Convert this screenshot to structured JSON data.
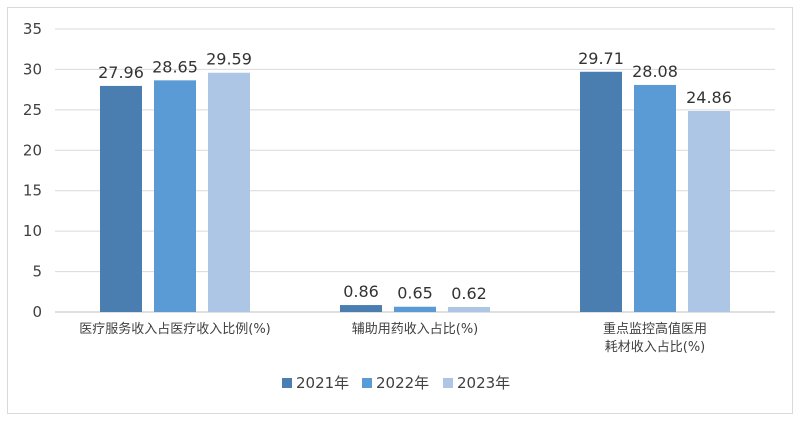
{
  "chart_data": {
    "type": "bar",
    "categories": [
      [
        "医疗服务收入占医疗收入比例(%)"
      ],
      [
        "辅助用药收入占比(%)"
      ],
      [
        "重点监控高值医用",
        "耗材收入占比(%)"
      ]
    ],
    "series": [
      {
        "name": "2021年",
        "color": "#4a7eb0",
        "values": [
          27.96,
          0.86,
          29.71
        ],
        "labels": [
          "27.96",
          "0.86",
          "29.71"
        ]
      },
      {
        "name": "2022年",
        "color": "#5b9bd5",
        "values": [
          28.65,
          0.65,
          28.08
        ],
        "labels": [
          "28.65",
          "0.65",
          "28.08"
        ]
      },
      {
        "name": "2023年",
        "color": "#adc6e5",
        "values": [
          29.59,
          0.62,
          24.86
        ],
        "labels": [
          "29.59",
          "0.62",
          "24.86"
        ]
      }
    ],
    "ylim": [
      0,
      35
    ],
    "yticks": [
      0,
      5,
      10,
      15,
      20,
      25,
      30,
      35
    ],
    "grid": true,
    "legend": "bottom"
  }
}
